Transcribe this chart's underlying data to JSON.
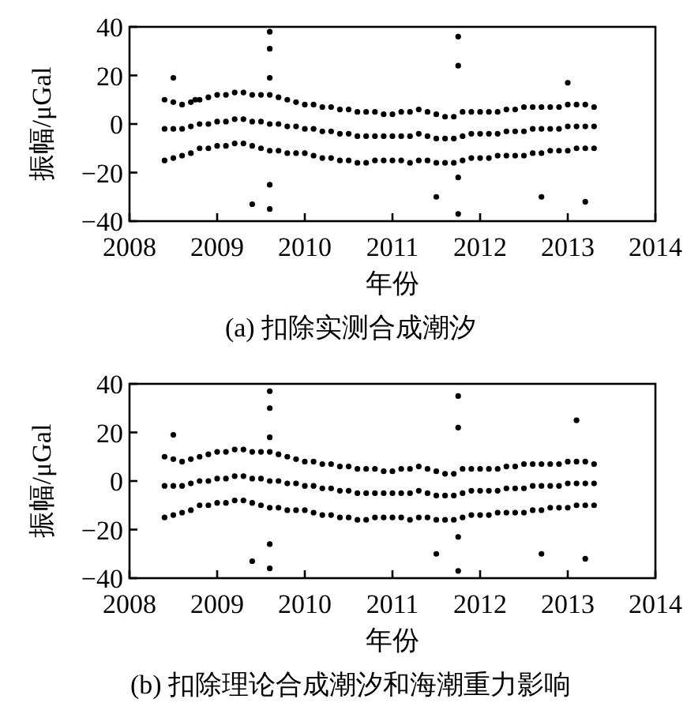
{
  "chart_data": [
    {
      "type": "scatter",
      "title": "(a) 扣除实测合成潮汐",
      "xlabel": "年份",
      "ylabel": "振幅/μGal",
      "xlim": [
        2008,
        2014
      ],
      "xticks": [
        2008,
        2009,
        2010,
        2011,
        2012,
        2013,
        2014
      ],
      "ylim": [
        -40,
        40
      ],
      "yticks": [
        -40,
        -20,
        0,
        20,
        40
      ],
      "grid": false,
      "marker": "circle",
      "series": [
        {
          "color": "#000000",
          "x": [
            2008.4,
            2008.5,
            2008.6,
            2008.7,
            2008.8,
            2008.9,
            2009.0,
            2009.1,
            2009.2,
            2009.3,
            2009.4,
            2009.5,
            2009.6,
            2009.7,
            2009.8,
            2009.9,
            2010.0,
            2010.1,
            2010.2,
            2010.3,
            2010.4,
            2010.5,
            2010.6,
            2010.7,
            2010.8,
            2010.9,
            2011.0,
            2011.1,
            2011.2,
            2011.3,
            2011.4,
            2011.5,
            2011.6,
            2011.7,
            2011.8,
            2011.9,
            2012.0,
            2012.1,
            2012.2,
            2012.3,
            2012.4,
            2012.5,
            2012.6,
            2012.7,
            2012.8,
            2012.9,
            2013.0,
            2013.1,
            2013.2,
            2013.3,
            2008.4,
            2008.5,
            2008.6,
            2008.7,
            2008.8,
            2008.9,
            2009.0,
            2009.1,
            2009.2,
            2009.3,
            2009.4,
            2009.5,
            2009.6,
            2009.7,
            2009.8,
            2009.9,
            2010.0,
            2010.1,
            2010.2,
            2010.3,
            2010.4,
            2010.5,
            2010.6,
            2010.7,
            2010.8,
            2010.9,
            2011.0,
            2011.1,
            2011.2,
            2011.3,
            2011.4,
            2011.5,
            2011.6,
            2011.7,
            2011.8,
            2011.9,
            2012.0,
            2012.1,
            2012.2,
            2012.3,
            2012.4,
            2012.5,
            2012.6,
            2012.7,
            2012.8,
            2012.9,
            2013.0,
            2013.1,
            2013.2,
            2013.3,
            2008.4,
            2008.5,
            2008.6,
            2008.7,
            2008.8,
            2008.9,
            2009.0,
            2009.1,
            2009.2,
            2009.3,
            2009.4,
            2009.5,
            2009.6,
            2009.7,
            2009.8,
            2009.9,
            2010.0,
            2010.1,
            2010.2,
            2010.3,
            2010.4,
            2010.5,
            2010.6,
            2010.7,
            2010.8,
            2010.9,
            2011.0,
            2011.1,
            2011.2,
            2011.3,
            2011.4,
            2011.5,
            2011.6,
            2011.7,
            2011.8,
            2011.9,
            2012.0,
            2012.1,
            2012.2,
            2012.3,
            2012.4,
            2012.5,
            2012.6,
            2012.7,
            2012.8,
            2012.9,
            2013.0,
            2013.1,
            2013.2,
            2013.3,
            2008.5,
            2009.6,
            2009.6,
            2009.6,
            2009.6,
            2009.6,
            2011.75,
            2011.75,
            2011.75,
            2011.75,
            2009.4,
            2011.5,
            2012.7,
            2013.2,
            2013.0,
            2008.75
          ],
          "values": [
            10,
            9,
            8,
            9,
            10,
            11,
            12,
            12,
            13,
            13,
            12,
            12,
            12,
            11,
            10,
            9,
            8,
            8,
            7,
            7,
            6,
            6,
            5,
            5,
            5,
            4,
            4,
            5,
            5,
            6,
            5,
            4,
            3,
            3,
            5,
            5,
            5,
            5,
            5,
            6,
            6,
            7,
            7,
            7,
            7,
            7,
            8,
            8,
            8,
            7,
            -15,
            -14,
            -13,
            -12,
            -10,
            -10,
            -9,
            -9,
            -8,
            -8,
            -9,
            -10,
            -11,
            -11,
            -12,
            -12,
            -12,
            -13,
            -14,
            -14,
            -15,
            -15,
            -16,
            -16,
            -15,
            -15,
            -15,
            -15,
            -16,
            -15,
            -15,
            -16,
            -16,
            -16,
            -15,
            -14,
            -14,
            -14,
            -13,
            -13,
            -13,
            -13,
            -12,
            -12,
            -11,
            -11,
            -11,
            -10,
            -10,
            -10,
            -2,
            -2,
            -2,
            -1,
            0,
            0,
            1,
            1,
            2,
            2,
            1,
            1,
            0,
            0,
            -1,
            -1,
            -2,
            -2,
            -3,
            -3,
            -4,
            -4,
            -5,
            -5,
            -5,
            -5,
            -5,
            -5,
            -5,
            -4,
            -5,
            -6,
            -6,
            -6,
            -5,
            -4,
            -4,
            -4,
            -4,
            -3,
            -3,
            -3,
            -2,
            -2,
            -2,
            -2,
            -1,
            -1,
            -1,
            -1,
            19,
            38,
            31,
            19,
            -25,
            -35,
            36,
            24,
            -22,
            -37,
            -33,
            -30,
            -30,
            -32,
            17,
            10
          ]
        }
      ]
    },
    {
      "type": "scatter",
      "title": "(b) 扣除理论合成潮汐和海潮重力影响",
      "xlabel": "年份",
      "ylabel": "振幅/μGal",
      "xlim": [
        2008,
        2014
      ],
      "xticks": [
        2008,
        2009,
        2010,
        2011,
        2012,
        2013,
        2014
      ],
      "ylim": [
        -40,
        40
      ],
      "yticks": [
        -40,
        -20,
        0,
        20,
        40
      ],
      "grid": false,
      "marker": "circle",
      "series": [
        {
          "color": "#000000",
          "x": [
            2008.4,
            2008.5,
            2008.6,
            2008.7,
            2008.8,
            2008.9,
            2009.0,
            2009.1,
            2009.2,
            2009.3,
            2009.4,
            2009.5,
            2009.6,
            2009.7,
            2009.8,
            2009.9,
            2010.0,
            2010.1,
            2010.2,
            2010.3,
            2010.4,
            2010.5,
            2010.6,
            2010.7,
            2010.8,
            2010.9,
            2011.0,
            2011.1,
            2011.2,
            2011.3,
            2011.4,
            2011.5,
            2011.6,
            2011.7,
            2011.8,
            2011.9,
            2012.0,
            2012.1,
            2012.2,
            2012.3,
            2012.4,
            2012.5,
            2012.6,
            2012.7,
            2012.8,
            2012.9,
            2013.0,
            2013.1,
            2013.2,
            2013.3,
            2008.4,
            2008.5,
            2008.6,
            2008.7,
            2008.8,
            2008.9,
            2009.0,
            2009.1,
            2009.2,
            2009.3,
            2009.4,
            2009.5,
            2009.6,
            2009.7,
            2009.8,
            2009.9,
            2010.0,
            2010.1,
            2010.2,
            2010.3,
            2010.4,
            2010.5,
            2010.6,
            2010.7,
            2010.8,
            2010.9,
            2011.0,
            2011.1,
            2011.2,
            2011.3,
            2011.4,
            2011.5,
            2011.6,
            2011.7,
            2011.8,
            2011.9,
            2012.0,
            2012.1,
            2012.2,
            2012.3,
            2012.4,
            2012.5,
            2012.6,
            2012.7,
            2012.8,
            2012.9,
            2013.0,
            2013.1,
            2013.2,
            2013.3,
            2008.4,
            2008.5,
            2008.6,
            2008.7,
            2008.8,
            2008.9,
            2009.0,
            2009.1,
            2009.2,
            2009.3,
            2009.4,
            2009.5,
            2009.6,
            2009.7,
            2009.8,
            2009.9,
            2010.0,
            2010.1,
            2010.2,
            2010.3,
            2010.4,
            2010.5,
            2010.6,
            2010.7,
            2010.8,
            2010.9,
            2011.0,
            2011.1,
            2011.2,
            2011.3,
            2011.4,
            2011.5,
            2011.6,
            2011.7,
            2011.8,
            2011.9,
            2012.0,
            2012.1,
            2012.2,
            2012.3,
            2012.4,
            2012.5,
            2012.6,
            2012.7,
            2012.8,
            2012.9,
            2013.0,
            2013.1,
            2013.2,
            2013.3,
            2008.5,
            2009.6,
            2009.6,
            2009.6,
            2009.6,
            2009.6,
            2011.75,
            2011.75,
            2011.75,
            2011.75,
            2009.4,
            2011.5,
            2012.7,
            2013.2,
            2013.1
          ],
          "values": [
            10,
            9,
            8,
            9,
            10,
            11,
            12,
            12,
            13,
            13,
            12,
            12,
            12,
            11,
            10,
            9,
            8,
            8,
            7,
            7,
            6,
            6,
            5,
            5,
            5,
            4,
            4,
            5,
            5,
            6,
            5,
            4,
            3,
            3,
            5,
            5,
            5,
            5,
            5,
            6,
            6,
            7,
            7,
            7,
            7,
            7,
            8,
            8,
            8,
            7,
            -15,
            -14,
            -13,
            -12,
            -10,
            -10,
            -9,
            -9,
            -8,
            -8,
            -9,
            -10,
            -11,
            -11,
            -12,
            -12,
            -12,
            -13,
            -14,
            -14,
            -15,
            -15,
            -16,
            -16,
            -15,
            -15,
            -15,
            -15,
            -16,
            -15,
            -15,
            -16,
            -16,
            -16,
            -15,
            -14,
            -14,
            -14,
            -13,
            -13,
            -13,
            -13,
            -12,
            -12,
            -11,
            -11,
            -11,
            -10,
            -10,
            -10,
            -2,
            -2,
            -2,
            -1,
            0,
            0,
            1,
            1,
            2,
            2,
            1,
            1,
            0,
            0,
            -1,
            -1,
            -2,
            -2,
            -3,
            -3,
            -4,
            -4,
            -5,
            -5,
            -5,
            -5,
            -5,
            -5,
            -5,
            -4,
            -5,
            -6,
            -6,
            -6,
            -5,
            -4,
            -4,
            -4,
            -4,
            -3,
            -3,
            -3,
            -2,
            -2,
            -2,
            -2,
            -1,
            -1,
            -1,
            -1,
            19,
            37,
            30,
            18,
            -26,
            -36,
            35,
            22,
            -23,
            -37,
            -33,
            -30,
            -30,
            -32,
            25
          ]
        }
      ]
    }
  ]
}
